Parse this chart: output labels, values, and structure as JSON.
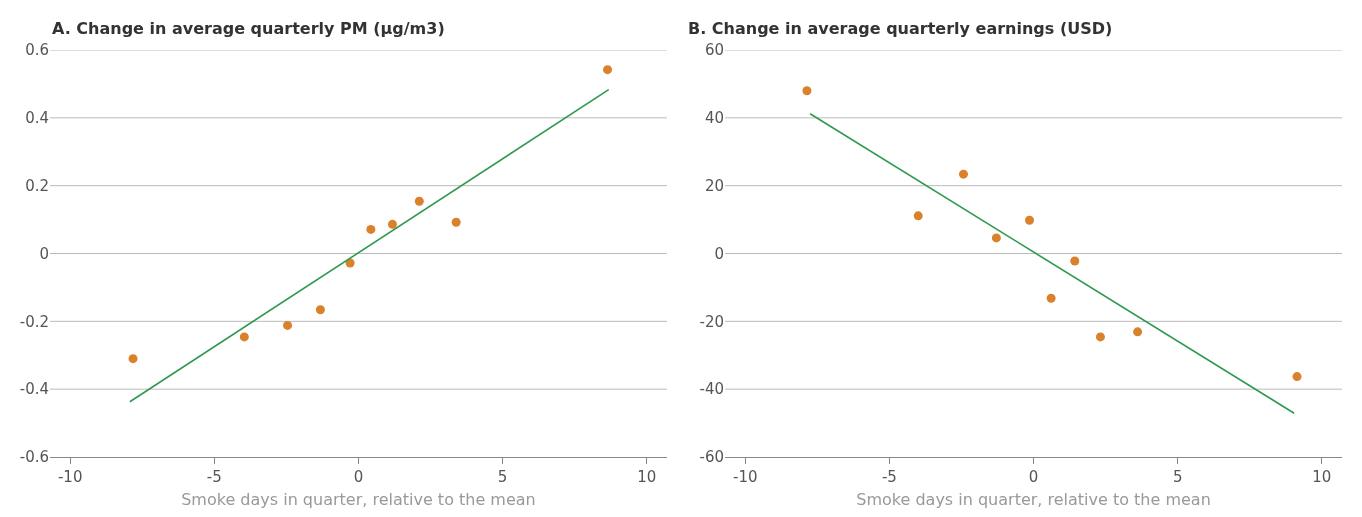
{
  "chart_data": [
    {
      "type": "scatter",
      "title": "A. Change in average quarterly PM (µg/m3)",
      "xlabel": "Smoke days in quarter, relative to the mean",
      "xlim": [
        -10.7,
        10.7
      ],
      "xticks": [
        -10,
        -5,
        0,
        5,
        10
      ],
      "ylim": [
        -0.6,
        0.6
      ],
      "yticks": [
        -0.6,
        -0.4,
        -0.2,
        0,
        0.2,
        0.4,
        0.6
      ],
      "grid": "y",
      "series": [
        {
          "marker": "circle",
          "color": "#d9822b",
          "x": [
            -7.82,
            -3.96,
            -2.46,
            -1.32,
            -0.29,
            0.43,
            1.18,
            2.11,
            3.39,
            8.64
          ],
          "values": [
            -0.31,
            -0.246,
            -0.212,
            -0.166,
            -0.028,
            0.071,
            0.086,
            0.154,
            0.092,
            0.542
          ]
        },
        {
          "type": "line",
          "marker": "none",
          "color": "#2e9a4c",
          "x": [
            -7.93,
            8.68
          ],
          "values": [
            -0.437,
            0.483
          ]
        }
      ]
    },
    {
      "type": "scatter",
      "title": "B. Change in average quarterly earnings (USD)",
      "xlabel": "Smoke days in quarter, relative to the mean",
      "xlim": [
        -10.7,
        10.7
      ],
      "xticks": [
        -10,
        -5,
        0,
        5,
        10
      ],
      "ylim": [
        -60,
        60
      ],
      "yticks": [
        -60,
        -40,
        -20,
        0,
        20,
        40,
        60
      ],
      "grid": "y",
      "series": [
        {
          "marker": "circle",
          "color": "#d9822b",
          "x": [
            -7.86,
            -4.0,
            -2.43,
            -1.29,
            -0.14,
            0.61,
            1.43,
            2.32,
            3.61,
            9.14
          ],
          "values": [
            48,
            11.1,
            23.4,
            4.6,
            9.8,
            -13.2,
            -2.2,
            -24.6,
            -23.1,
            -36.3
          ]
        },
        {
          "type": "line",
          "marker": "none",
          "color": "#2e9a4c",
          "x": [
            -7.75,
            9.04
          ],
          "values": [
            41.2,
            -47.1
          ]
        }
      ]
    }
  ]
}
